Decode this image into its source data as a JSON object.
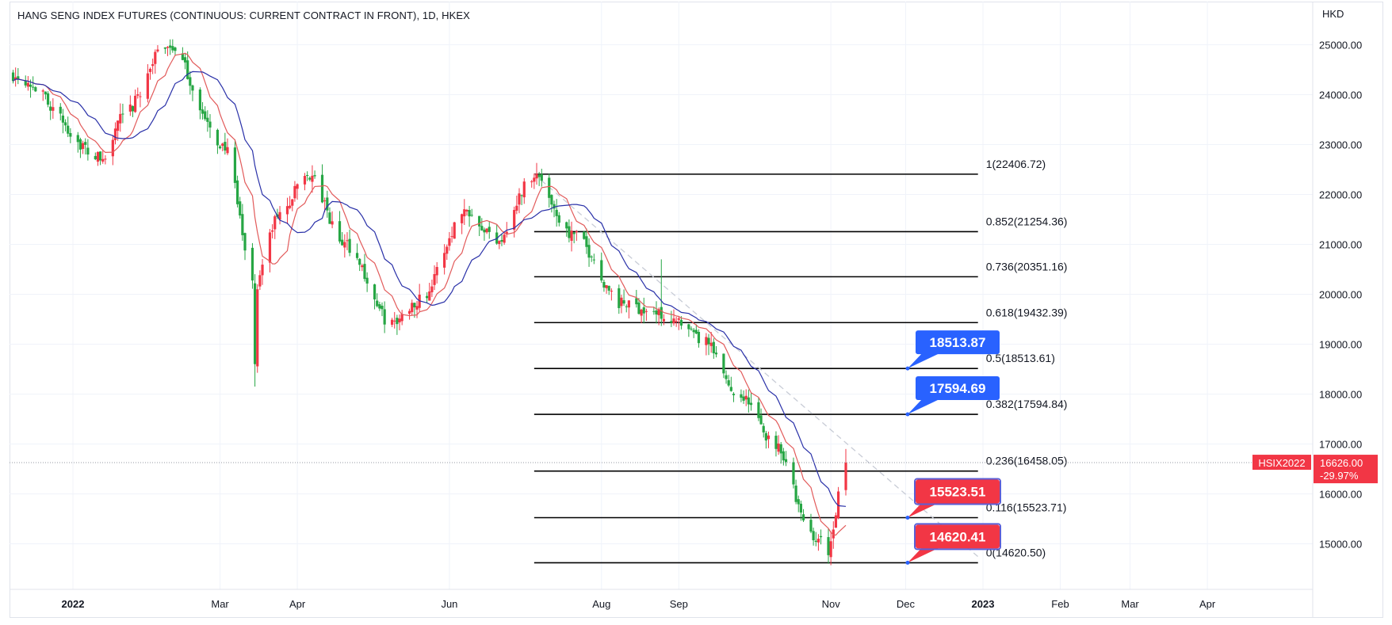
{
  "chart_data": {
    "type": "candlestick",
    "title": "HANG SENG INDEX FUTURES (CONTINUOUS: CURRENT CONTRACT IN FRONT), 1D, HKEX",
    "currency": "HKD",
    "y_axis": {
      "range": [
        14000,
        25800
      ],
      "ticks": [
        "25000.00",
        "24000.00",
        "23000.00",
        "22000.00",
        "21000.00",
        "20000.00",
        "19000.00",
        "18000.00",
        "17000.00",
        "16000.00",
        "15000.00"
      ]
    },
    "x_axis": {
      "ticks": [
        {
          "label": "2022",
          "bold": true
        },
        {
          "label": "Mar",
          "bold": false
        },
        {
          "label": "Apr",
          "bold": false
        },
        {
          "label": "Jun",
          "bold": false
        },
        {
          "label": "Aug",
          "bold": false
        },
        {
          "label": "Sep",
          "bold": false
        },
        {
          "label": "Nov",
          "bold": false
        },
        {
          "label": "Dec",
          "bold": false
        },
        {
          "label": "2023",
          "bold": true
        },
        {
          "label": "Feb",
          "bold": false
        },
        {
          "label": "Mar",
          "bold": false
        },
        {
          "label": "Apr",
          "bold": false
        }
      ]
    },
    "price_path": {
      "anchor_dates": [
        "2021-12-08",
        "2022-01-14",
        "2022-01-20",
        "2022-02-08",
        "2022-03-02",
        "2022-03-15",
        "2022-03-25",
        "2022-04-05",
        "2022-04-20",
        "2022-05-09",
        "2022-05-20",
        "2022-06-08",
        "2022-06-20",
        "2022-07-05",
        "2022-07-20",
        "2022-08-10",
        "2022-08-25",
        "2022-09-10",
        "2022-09-25",
        "2022-10-10",
        "2022-10-24",
        "2022-10-31",
        "2022-11-07"
      ],
      "anchor_closes": [
        24400,
        22700,
        23500,
        25000,
        23000,
        20300,
        21600,
        22400,
        21000,
        19400,
        19900,
        21700,
        21100,
        22400,
        21200,
        19800,
        19600,
        19100,
        18000,
        17000,
        15200,
        14900,
        16620
      ]
    },
    "moving_averages": [
      {
        "color": "#e25a5a",
        "period": 10
      },
      {
        "color": "#2930a8",
        "period": 20
      }
    ],
    "fibonacci": {
      "levels": [
        {
          "label": "1(22406.72)",
          "value": 22406.72
        },
        {
          "label": "0.852(21254.36)",
          "value": 21254.36
        },
        {
          "label": "0.736(20351.16)",
          "value": 20351.16
        },
        {
          "label": "0.618(19432.39)",
          "value": 19432.39
        },
        {
          "label": "0.5(18513.61)",
          "value": 18513.61
        },
        {
          "label": "0.382(17594.84)",
          "value": 17594.84
        },
        {
          "label": "0.236(16458.05)",
          "value": 16458.05
        },
        {
          "label": "0.116(15523.71)",
          "value": 15523.71
        },
        {
          "label": "0(14620.50)",
          "value": 14620.5
        }
      ],
      "start_date": "2022-07-05",
      "end_date": "2022-12-30"
    },
    "trendline": {
      "from": {
        "date": "2022-07-05",
        "price": 22406
      },
      "to": {
        "date": "2022-12-31",
        "price": 14700
      }
    },
    "callouts": [
      {
        "text": "18513.87",
        "value": 18513.87,
        "color": "#2962ff"
      },
      {
        "text": "17594.69",
        "value": 17594.69,
        "color": "#2962ff"
      },
      {
        "text": "15523.51",
        "value": 15523.51,
        "color": "#f23645"
      },
      {
        "text": "14620.41",
        "value": 14620.41,
        "color": "#f23645"
      }
    ],
    "last_price": {
      "symbol": "HSIX2022",
      "price": "16626.00",
      "change": "-29.97%",
      "value": 16626.0,
      "color": "#f23645"
    },
    "colors": {
      "up": "#f23645",
      "down": "#26a644",
      "grid": "#f0f3fa",
      "fib_line": "#000000",
      "trendline": "#c8ccd6"
    }
  }
}
